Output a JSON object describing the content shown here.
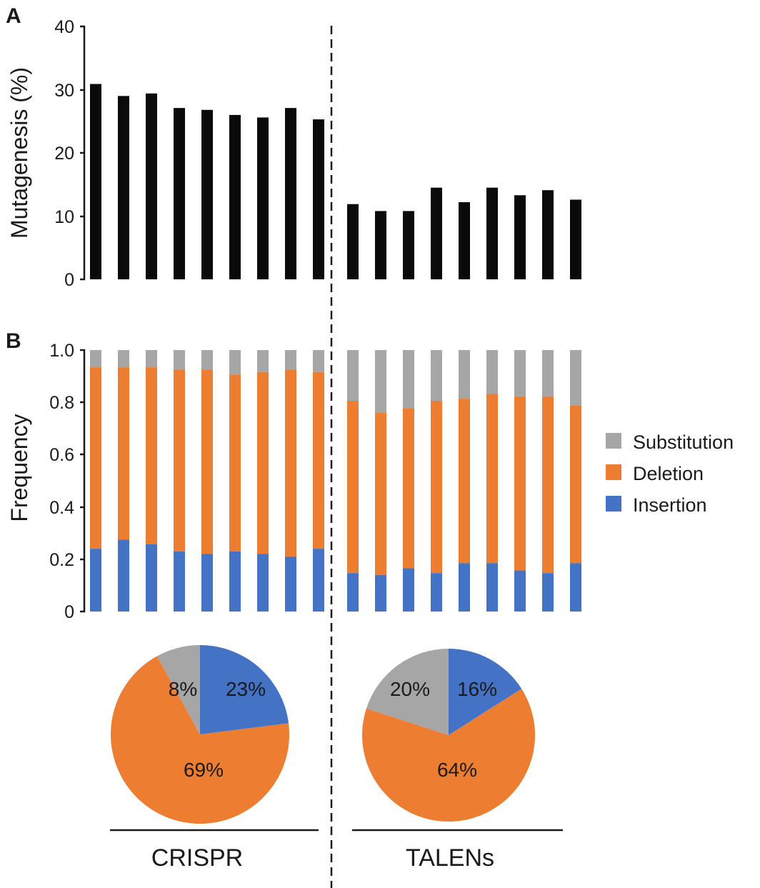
{
  "figure": {
    "panel_a_letter": "A",
    "panel_b_letter": "B",
    "groups": [
      "CRISPR",
      "TALENs"
    ]
  },
  "chart_data": [
    {
      "type": "bar",
      "panel": "A",
      "title": "",
      "xlabel": "",
      "ylabel": "Mutagenesis (%)",
      "ylim": [
        0,
        40
      ],
      "yticks": [
        "0",
        "10",
        "20",
        "30",
        "40"
      ],
      "bar_color": "#0a0a0a",
      "series": [
        {
          "name": "CRISPR",
          "values": [
            30.9,
            29.0,
            29.4,
            27.1,
            26.8,
            26.0,
            25.6,
            27.1,
            25.3
          ]
        },
        {
          "name": "TALENs",
          "values": [
            11.9,
            10.8,
            10.8,
            14.5,
            12.2,
            14.5,
            13.3,
            14.1,
            12.6
          ]
        }
      ]
    },
    {
      "type": "bar",
      "stacked": true,
      "panel": "B",
      "title": "",
      "xlabel": "",
      "ylabel": "Frequency",
      "ylim": [
        0,
        1.0
      ],
      "yticks": [
        "0",
        "0.2",
        "0.4",
        "0.6",
        "0.8",
        "1.0"
      ],
      "legend": [
        {
          "name": "Substitution",
          "color": "#a6a6a6"
        },
        {
          "name": "Deletion",
          "color": "#ed7d31"
        },
        {
          "name": "Insertion",
          "color": "#4472c4"
        }
      ],
      "legend_position": "right",
      "series": [
        {
          "group": "CRISPR",
          "insertion": [
            0.24,
            0.275,
            0.257,
            0.23,
            0.22,
            0.23,
            0.22,
            0.21,
            0.24
          ],
          "deletion_top": [
            0.934,
            0.934,
            0.934,
            0.925,
            0.925,
            0.906,
            0.916,
            0.925,
            0.916
          ]
        },
        {
          "group": "TALENs",
          "insertion": [
            0.147,
            0.14,
            0.166,
            0.147,
            0.185,
            0.185,
            0.157,
            0.147,
            0.185
          ],
          "deletion_top": [
            0.806,
            0.76,
            0.778,
            0.806,
            0.814,
            0.832,
            0.823,
            0.823,
            0.787
          ]
        }
      ]
    },
    {
      "type": "pie",
      "panel": "CRISPR",
      "slices": [
        {
          "name": "Insertion",
          "value": 23,
          "label": "23%",
          "color": "#4472c4"
        },
        {
          "name": "Deletion",
          "value": 69,
          "label": "69%",
          "color": "#ed7d31"
        },
        {
          "name": "Substitution",
          "value": 8,
          "label": "8%",
          "color": "#a6a6a6"
        }
      ]
    },
    {
      "type": "pie",
      "panel": "TALENs",
      "slices": [
        {
          "name": "Insertion",
          "value": 16,
          "label": "16%",
          "color": "#4472c4"
        },
        {
          "name": "Deletion",
          "value": 64,
          "label": "64%",
          "color": "#ed7d31"
        },
        {
          "name": "Substitution",
          "value": 20,
          "label": "20%",
          "color": "#a6a6a6"
        }
      ]
    }
  ]
}
